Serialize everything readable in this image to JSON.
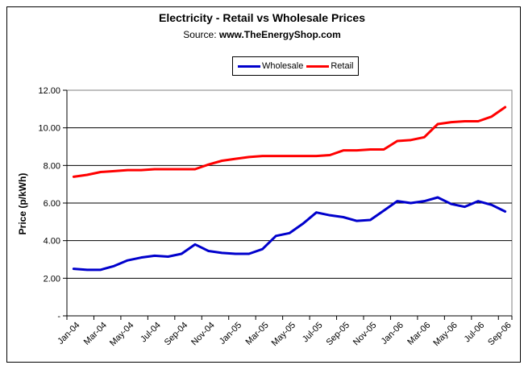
{
  "header": {
    "title": "Electricity - Retail vs Wholesale Prices",
    "source_label": "Source:",
    "source_value": "www.TheEnergyShop.com"
  },
  "y_axis_title": "Price (p/kWh)",
  "legend": {
    "items": [
      {
        "label": "Wholesale",
        "color": "#0000CC"
      },
      {
        "label": "Retail",
        "color": "#FF0000"
      }
    ]
  },
  "chart_data": {
    "type": "line",
    "title": "Electricity - Retail vs Wholesale Prices",
    "subtitle": "Source: www.TheEnergyShop.com",
    "ylabel": "Price (p/kWh)",
    "xlabel": "",
    "ylim": [
      0,
      12
    ],
    "grid": true,
    "legend_position": "top",
    "x": [
      "Jan-04",
      "Feb-04",
      "Mar-04",
      "Apr-04",
      "May-04",
      "Jun-04",
      "Jul-04",
      "Aug-04",
      "Sep-04",
      "Oct-04",
      "Nov-04",
      "Dec-04",
      "Jan-05",
      "Feb-05",
      "Mar-05",
      "Apr-05",
      "May-05",
      "Jun-05",
      "Jul-05",
      "Aug-05",
      "Sep-05",
      "Oct-05",
      "Nov-05",
      "Dec-05",
      "Jan-06",
      "Feb-06",
      "Mar-06",
      "Apr-06",
      "May-06",
      "Jun-06",
      "Jul-06",
      "Aug-06",
      "Sep-06"
    ],
    "x_tick_labels": [
      "Jan-04",
      "Mar-04",
      "May-04",
      "Jul-04",
      "Sep-04",
      "Nov-04",
      "Jan-05",
      "Mar-05",
      "May-05",
      "Jul-05",
      "Sep-05",
      "Nov-05",
      "Jan-06",
      "Mar-06",
      "May-06",
      "Jul-06",
      "Sep-06"
    ],
    "yticks": [
      0,
      2,
      4,
      6,
      8,
      10,
      12
    ],
    "ytick_labels": [
      "-",
      "2.00",
      "4.00",
      "6.00",
      "8.00",
      "10.00",
      "12.00"
    ],
    "series": [
      {
        "name": "Wholesale",
        "color": "#0000CC",
        "values": [
          2.5,
          2.45,
          2.45,
          2.65,
          2.95,
          3.1,
          3.2,
          3.15,
          3.3,
          3.8,
          3.45,
          3.35,
          3.3,
          3.3,
          3.55,
          4.25,
          4.4,
          4.9,
          5.5,
          5.35,
          5.25,
          5.05,
          5.1,
          5.6,
          6.1,
          6.0,
          6.1,
          6.3,
          5.95,
          5.8,
          6.1,
          5.9,
          5.55
        ]
      },
      {
        "name": "Retail",
        "color": "#FF0000",
        "values": [
          7.4,
          7.5,
          7.65,
          7.7,
          7.75,
          7.75,
          7.8,
          7.8,
          7.8,
          7.8,
          8.05,
          8.25,
          8.35,
          8.45,
          8.5,
          8.5,
          8.5,
          8.5,
          8.5,
          8.55,
          8.8,
          8.8,
          8.85,
          8.85,
          9.3,
          9.35,
          9.5,
          10.2,
          10.3,
          10.35,
          10.35,
          10.6,
          11.1
        ]
      }
    ]
  }
}
